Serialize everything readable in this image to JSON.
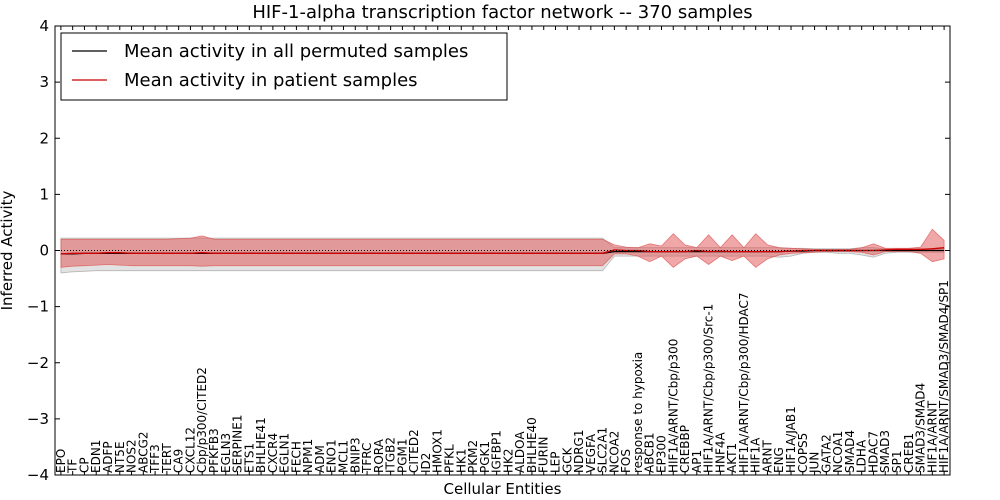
{
  "chart_data": {
    "type": "line",
    "title": "HIF-1-alpha transcription factor network -- 370 samples",
    "xlabel": "Cellular Entities",
    "ylabel": "Inferred Activity",
    "ylim": [
      -4,
      4
    ],
    "yticks": [
      -4,
      -3,
      -2,
      -1,
      0,
      1,
      2,
      3,
      4
    ],
    "ytick_labels": [
      "−4",
      "−3",
      "−2",
      "−1",
      "0",
      "1",
      "2",
      "3",
      "4"
    ],
    "legend_position": "top-left",
    "reference_line": 0,
    "categories": [
      "EPO",
      "TF",
      "CP",
      "EDN1",
      "ADFP",
      "NT5E",
      "NOS2",
      "ABCG2",
      "TFF3",
      "TERT",
      "CA9",
      "CXCL12",
      "Cbp/p300/CITED2",
      "PFKFB3",
      "EGLN3",
      "SERPINE1",
      "ETS1",
      "BHLHE41",
      "CXCR4",
      "EGLN1",
      "FECH",
      "NPM1",
      "ADM",
      "ENO1",
      "MCL1",
      "BNIP3",
      "TFRC",
      "RORA",
      "ITGB2",
      "PGM1",
      "CITED2",
      "ID2",
      "HMOX1",
      "PFKL",
      "HK1",
      "PKM2",
      "PGK1",
      "IGFBP1",
      "HK2",
      "ALDOA",
      "BHLHE40",
      "FURIN",
      "LEP",
      "GCK",
      "NDRG1",
      "VEGFA",
      "SLC2A1",
      "NCOA2",
      "FOS",
      "response to hypoxia",
      "ABCB1",
      "EP300",
      "HIF1A/ARNT/Cbp/p300",
      "CREBBP",
      "AP1",
      "HIF1A/ARNT/Cbp/p300/Src-1",
      "HNF4A",
      "AKT1",
      "HIF1A/ARNT/Cbp/p300/HDAC7",
      "HIF1A",
      "ARNT",
      "ENG",
      "HIF1A/JAB1",
      "COPS5",
      "JUN",
      "GATA2",
      "NCOA1",
      "SMAD4",
      "LDHA",
      "HDAC7",
      "SMAD3",
      "SP1",
      "CREB1",
      "SMAD3/SMAD4",
      "HIF1A/ARNT",
      "HIF1A/ARNT/SMAD3/SMAD4/SP1"
    ],
    "series": [
      {
        "name": "Mean activity in all permuted samples",
        "color": "#000000",
        "band_color": "#9e9e9e",
        "values": [
          -0.06,
          -0.06,
          -0.05,
          -0.05,
          -0.05,
          -0.05,
          -0.05,
          -0.05,
          -0.05,
          -0.05,
          -0.05,
          -0.05,
          -0.05,
          -0.05,
          -0.05,
          -0.05,
          -0.05,
          -0.05,
          -0.05,
          -0.05,
          -0.05,
          -0.05,
          -0.05,
          -0.05,
          -0.05,
          -0.05,
          -0.05,
          -0.05,
          -0.05,
          -0.05,
          -0.05,
          -0.05,
          -0.05,
          -0.05,
          -0.05,
          -0.05,
          -0.05,
          -0.05,
          -0.05,
          -0.05,
          -0.05,
          -0.05,
          -0.05,
          -0.05,
          -0.05,
          -0.05,
          -0.05,
          -0.02,
          -0.02,
          -0.02,
          -0.02,
          -0.02,
          -0.02,
          -0.02,
          -0.02,
          -0.02,
          -0.02,
          -0.02,
          -0.02,
          -0.02,
          -0.02,
          -0.02,
          -0.01,
          -0.01,
          0.0,
          0.0,
          0.0,
          0.0,
          0.0,
          0.0,
          0.0,
          0.0,
          0.0,
          0.0,
          0.0,
          0.0
        ],
        "lower": [
          -0.4,
          -0.38,
          -0.37,
          -0.36,
          -0.36,
          -0.36,
          -0.36,
          -0.36,
          -0.36,
          -0.36,
          -0.36,
          -0.36,
          -0.36,
          -0.36,
          -0.36,
          -0.36,
          -0.36,
          -0.36,
          -0.36,
          -0.36,
          -0.36,
          -0.36,
          -0.36,
          -0.36,
          -0.36,
          -0.36,
          -0.36,
          -0.36,
          -0.36,
          -0.36,
          -0.36,
          -0.36,
          -0.36,
          -0.36,
          -0.36,
          -0.36,
          -0.36,
          -0.36,
          -0.36,
          -0.36,
          -0.36,
          -0.36,
          -0.36,
          -0.36,
          -0.36,
          -0.36,
          -0.36,
          -0.1,
          -0.1,
          -0.1,
          -0.1,
          -0.1,
          -0.1,
          -0.1,
          -0.1,
          -0.1,
          -0.1,
          -0.1,
          -0.1,
          -0.1,
          -0.1,
          -0.12,
          -0.1,
          -0.05,
          -0.03,
          -0.03,
          -0.05,
          -0.05,
          -0.08,
          -0.12,
          -0.05,
          -0.03,
          -0.03,
          -0.03,
          -0.03,
          -0.03
        ],
        "upper": [
          0.22,
          0.22,
          0.22,
          0.22,
          0.22,
          0.22,
          0.22,
          0.22,
          0.22,
          0.22,
          0.22,
          0.22,
          0.22,
          0.22,
          0.22,
          0.22,
          0.22,
          0.22,
          0.22,
          0.22,
          0.22,
          0.22,
          0.22,
          0.22,
          0.22,
          0.22,
          0.22,
          0.22,
          0.22,
          0.22,
          0.22,
          0.22,
          0.22,
          0.22,
          0.22,
          0.22,
          0.22,
          0.22,
          0.22,
          0.22,
          0.22,
          0.22,
          0.22,
          0.22,
          0.22,
          0.22,
          0.22,
          0.05,
          0.05,
          0.05,
          0.05,
          0.05,
          0.05,
          0.05,
          0.05,
          0.05,
          0.05,
          0.05,
          0.05,
          0.05,
          0.05,
          0.05,
          0.04,
          0.04,
          0.03,
          0.03,
          0.03,
          0.03,
          0.05,
          0.05,
          0.03,
          0.03,
          0.03,
          0.03,
          0.03,
          0.03
        ]
      },
      {
        "name": "Mean activity in patient samples",
        "color": "#cc0000",
        "band_color": "#e05050",
        "values": [
          -0.06,
          -0.05,
          -0.05,
          -0.05,
          -0.04,
          -0.04,
          -0.05,
          -0.05,
          -0.05,
          -0.05,
          -0.05,
          -0.05,
          -0.04,
          -0.05,
          -0.05,
          -0.05,
          -0.05,
          -0.05,
          -0.05,
          -0.05,
          -0.05,
          -0.05,
          -0.05,
          -0.05,
          -0.05,
          -0.05,
          -0.05,
          -0.05,
          -0.05,
          -0.05,
          -0.05,
          -0.05,
          -0.05,
          -0.05,
          -0.05,
          -0.05,
          -0.05,
          -0.05,
          -0.05,
          -0.05,
          -0.05,
          -0.05,
          -0.05,
          -0.05,
          -0.05,
          -0.05,
          -0.05,
          0.01,
          0.0,
          0.0,
          -0.02,
          -0.02,
          -0.02,
          -0.02,
          0.0,
          -0.02,
          -0.01,
          -0.02,
          -0.02,
          -0.02,
          -0.02,
          -0.02,
          -0.01,
          0.0,
          0.0,
          0.0,
          0.0,
          0.0,
          0.0,
          0.0,
          0.01,
          0.02,
          0.02,
          0.02,
          0.03,
          0.05
        ],
        "lower": [
          -0.3,
          -0.28,
          -0.27,
          -0.26,
          -0.25,
          -0.26,
          -0.27,
          -0.27,
          -0.27,
          -0.27,
          -0.27,
          -0.27,
          -0.28,
          -0.27,
          -0.27,
          -0.27,
          -0.27,
          -0.27,
          -0.27,
          -0.27,
          -0.27,
          -0.27,
          -0.27,
          -0.27,
          -0.27,
          -0.27,
          -0.27,
          -0.27,
          -0.27,
          -0.27,
          -0.27,
          -0.27,
          -0.27,
          -0.27,
          -0.27,
          -0.27,
          -0.27,
          -0.27,
          -0.27,
          -0.27,
          -0.27,
          -0.27,
          -0.27,
          -0.27,
          -0.27,
          -0.27,
          -0.27,
          -0.06,
          -0.06,
          -0.1,
          -0.2,
          -0.1,
          -0.3,
          -0.15,
          -0.1,
          -0.25,
          -0.1,
          -0.18,
          -0.1,
          -0.3,
          -0.15,
          -0.08,
          -0.05,
          -0.04,
          -0.03,
          -0.02,
          -0.02,
          -0.02,
          -0.03,
          -0.08,
          -0.02,
          -0.02,
          -0.02,
          -0.05,
          -0.2,
          -0.15
        ],
        "upper": [
          0.2,
          0.2,
          0.2,
          0.2,
          0.2,
          0.2,
          0.2,
          0.2,
          0.2,
          0.2,
          0.21,
          0.22,
          0.26,
          0.2,
          0.2,
          0.2,
          0.2,
          0.2,
          0.2,
          0.2,
          0.2,
          0.2,
          0.2,
          0.2,
          0.2,
          0.2,
          0.2,
          0.2,
          0.2,
          0.2,
          0.2,
          0.2,
          0.2,
          0.2,
          0.2,
          0.2,
          0.2,
          0.2,
          0.2,
          0.2,
          0.2,
          0.2,
          0.2,
          0.2,
          0.2,
          0.2,
          0.2,
          0.1,
          0.06,
          0.05,
          0.12,
          0.08,
          0.3,
          0.1,
          0.05,
          0.28,
          0.05,
          0.28,
          0.05,
          0.3,
          0.1,
          0.05,
          0.04,
          0.03,
          0.02,
          0.02,
          0.02,
          0.02,
          0.05,
          0.12,
          0.04,
          0.04,
          0.04,
          0.06,
          0.38,
          0.18
        ]
      }
    ]
  }
}
